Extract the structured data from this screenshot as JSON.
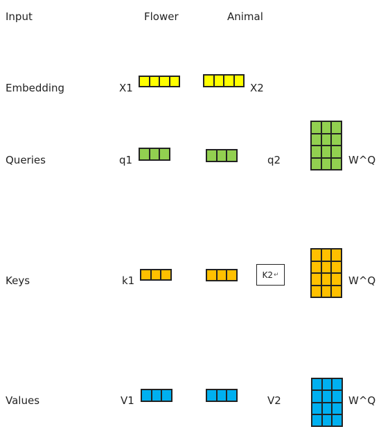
{
  "header": {
    "input_label": "Input",
    "word1": "Flower",
    "word2": "Animal"
  },
  "rows": {
    "embedding": {
      "label": "Embedding",
      "left_var": "X1",
      "right_var": "X2"
    },
    "queries": {
      "label": "Queries",
      "left_var": "q1",
      "right_var": "q2",
      "matrix_label": "W^Q"
    },
    "keys": {
      "label": "Keys",
      "left_var": "k1",
      "right_var": "K2",
      "matrix_label": "W^Q"
    },
    "values": {
      "label": "Values",
      "left_var": "V1",
      "right_var": "V2",
      "matrix_label": "W^Q"
    }
  },
  "colors": {
    "embedding": "#ffff00",
    "queries": "#92d050",
    "keys": "#ffc000",
    "values": "#00b0f0"
  },
  "icons": {
    "keys_textbox_mark": "↵"
  }
}
